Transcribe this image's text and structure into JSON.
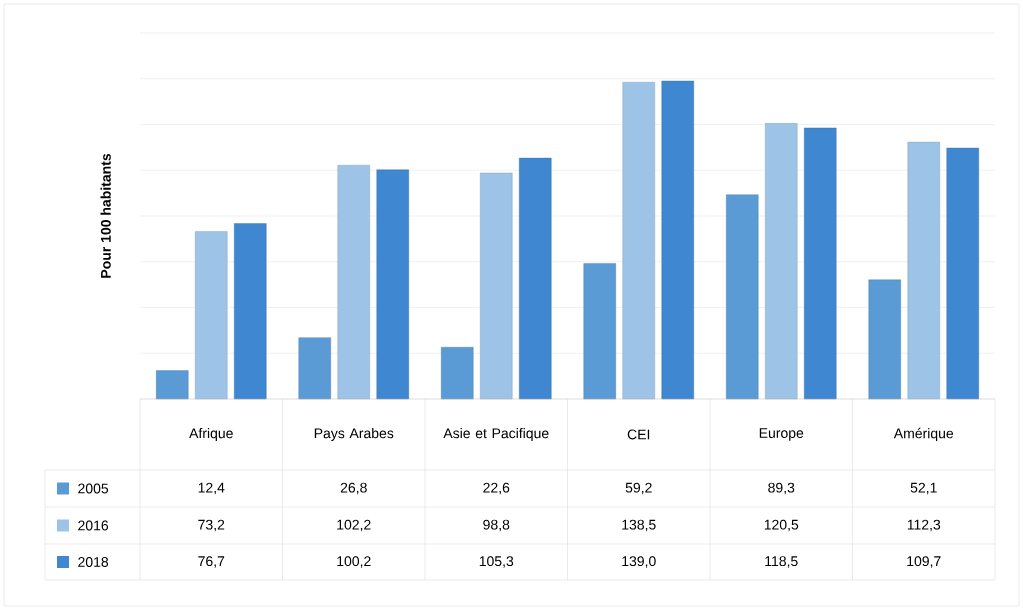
{
  "chart_data": {
    "type": "bar",
    "ylabel": "Pour 100 habitants",
    "categories": [
      "Afrique",
      "Pays Arabes",
      "Asie et Pacifique",
      "CEI",
      "Europe",
      "Amérique"
    ],
    "series": [
      {
        "name": "2005",
        "color": "#5b9bd5",
        "values": [
          12.4,
          26.8,
          22.6,
          59.2,
          89.3,
          52.1
        ],
        "value_labels": [
          "12,4",
          "26,8",
          "22,6",
          "59,2",
          "89,3",
          "52,1"
        ]
      },
      {
        "name": "2016",
        "color": "#9dc3e6",
        "values": [
          73.2,
          102.2,
          98.8,
          138.5,
          120.5,
          112.3
        ],
        "value_labels": [
          "73,2",
          "102,2",
          "98,8",
          "138,5",
          "120,5",
          "112,3"
        ]
      },
      {
        "name": "2018",
        "color": "#3f87d0",
        "values": [
          76.7,
          100.2,
          105.3,
          139.0,
          118.5,
          109.7
        ],
        "value_labels": [
          "76,7",
          "100,2",
          "105,3",
          "139,0",
          "118,5",
          "109,7"
        ]
      }
    ],
    "ylim": [
      0,
      160
    ],
    "yticks": [
      {
        "value": 0,
        "label": null
      },
      {
        "value": 20,
        "label": null
      },
      {
        "value": 40,
        "label": null
      },
      {
        "value": 60,
        "label": null
      },
      {
        "value": 80,
        "label": null
      },
      {
        "value": 100,
        "label": null
      },
      {
        "value": 120,
        "label": null
      },
      {
        "value": 140,
        "label": null
      },
      {
        "value": 160,
        "label": null
      }
    ],
    "grid": "y",
    "legend": "bottom",
    "tick_labels": "x"
  }
}
